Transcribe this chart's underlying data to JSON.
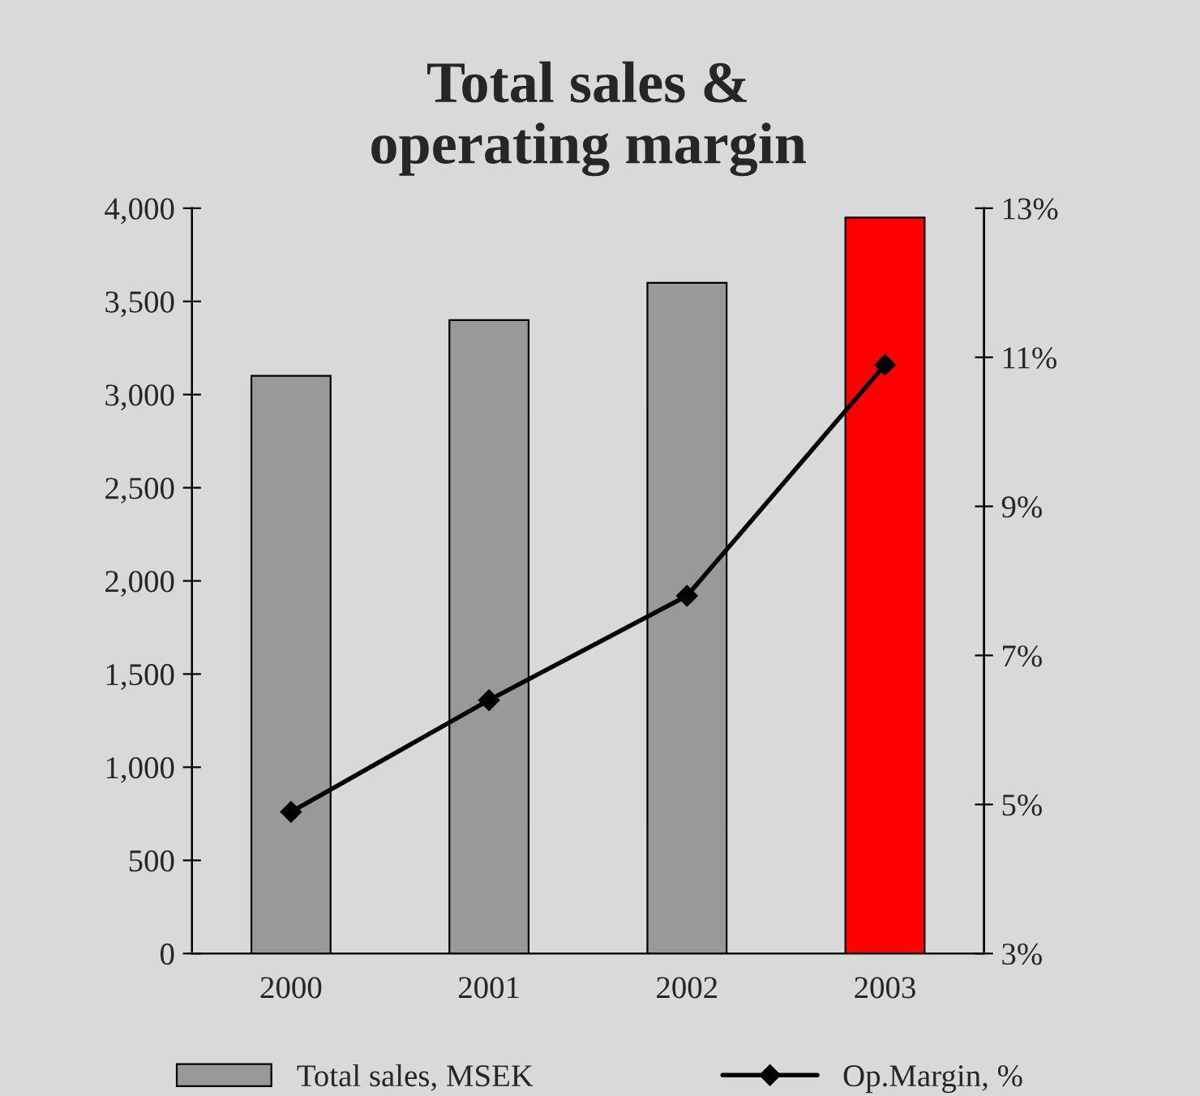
{
  "chart_data": {
    "type": "bar",
    "title": "Total sales &\noperating margin",
    "categories": [
      "2000",
      "2001",
      "2002",
      "2003"
    ],
    "series": [
      {
        "name": "Total sales, MSEK",
        "color": "#999999",
        "colors": [
          "#999999",
          "#999999",
          "#999999",
          "#ff0000"
        ],
        "values": [
          3100,
          3400,
          3600,
          3950
        ]
      },
      {
        "name": "Op.Margin, %",
        "type": "line",
        "axis": "y2",
        "color": "#000000",
        "marker": "diamond",
        "values": [
          4.9,
          6.4,
          7.8,
          10.9
        ]
      }
    ],
    "ylim": [
      0,
      4000
    ],
    "yticks": [
      {
        "value": 0,
        "label": "0"
      },
      {
        "value": 500,
        "label": "500"
      },
      {
        "value": 1000,
        "label": "1,000"
      },
      {
        "value": 1500,
        "label": "1,500"
      },
      {
        "value": 2000,
        "label": "2,000"
      },
      {
        "value": 2500,
        "label": "2,500"
      },
      {
        "value": 3000,
        "label": "3,000"
      },
      {
        "value": 3500,
        "label": "3,500"
      },
      {
        "value": 4000,
        "label": "4,000"
      }
    ],
    "y2lim": [
      3,
      13
    ],
    "y2ticks": [
      {
        "value": 3,
        "label": "3%"
      },
      {
        "value": 5,
        "label": "5%"
      },
      {
        "value": 7,
        "label": "7%"
      },
      {
        "value": 9,
        "label": "9%"
      },
      {
        "value": 11,
        "label": "11%"
      },
      {
        "value": 13,
        "label": "13%"
      }
    ],
    "grid": false,
    "legend": "bottom"
  }
}
